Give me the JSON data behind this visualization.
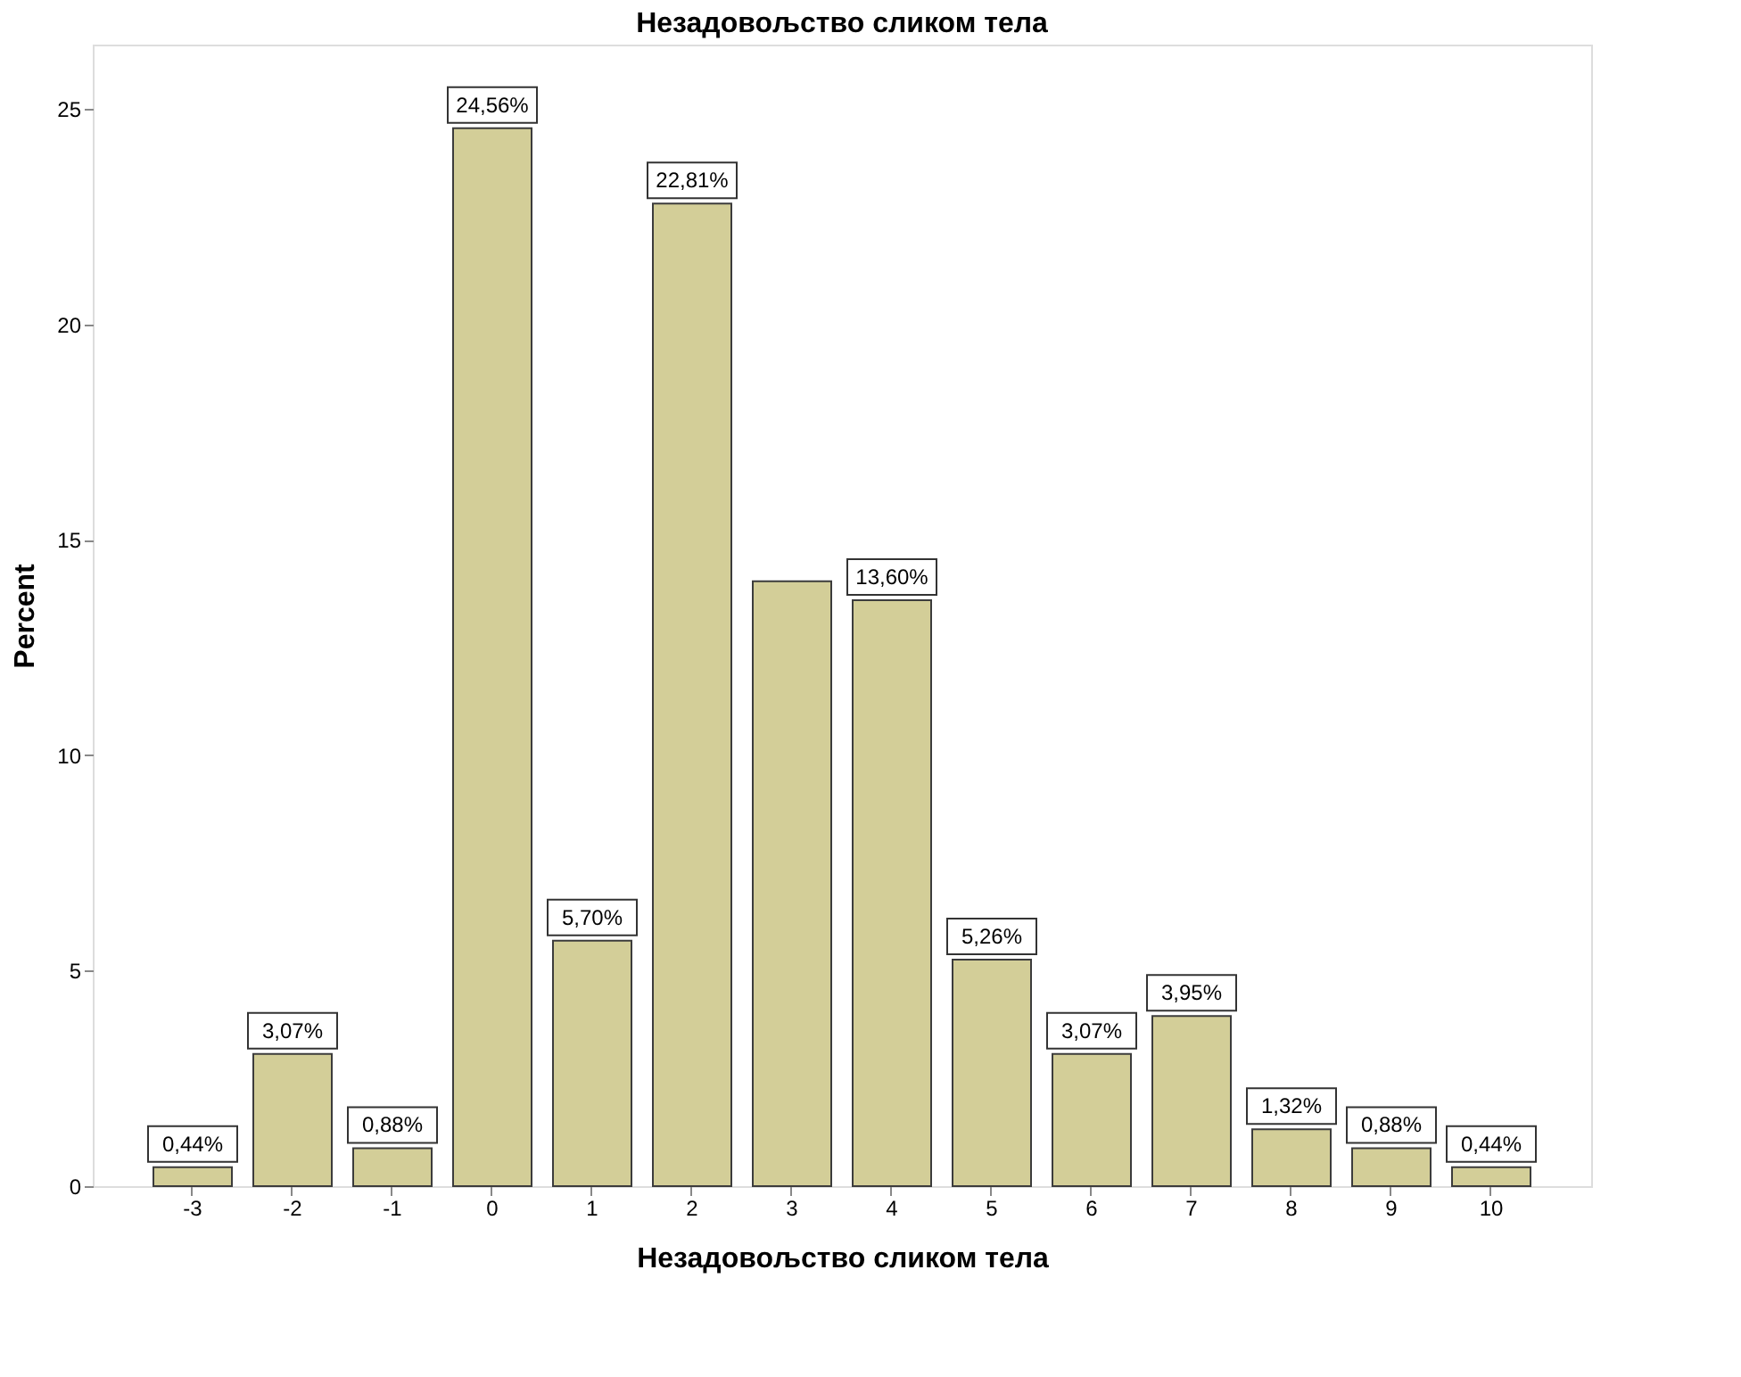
{
  "chart_data": {
    "type": "bar",
    "title": "Незадовољство сликом тела",
    "xlabel": "Незадовољство сликом тела",
    "ylabel": "Percent",
    "categories": [
      "-3",
      "-2",
      "-1",
      "0",
      "1",
      "2",
      "3",
      "4",
      "5",
      "6",
      "7",
      "8",
      "9",
      "10"
    ],
    "values": [
      0.44,
      3.07,
      0.88,
      24.56,
      5.7,
      22.81,
      14.04,
      13.6,
      5.26,
      3.07,
      3.95,
      1.32,
      0.88,
      0.44
    ],
    "value_labels": [
      "0,44%",
      "3,07%",
      "0,88%",
      "24,56%",
      "5,70%",
      "22,81%",
      null,
      "13,60%",
      "5,26%",
      "3,07%",
      "3,95%",
      "1,32%",
      "0,88%",
      "0,44%"
    ],
    "color": "#d3ce98",
    "ylim": [
      0,
      26.5
    ],
    "yticks": [
      0,
      5,
      10,
      15,
      20,
      25
    ],
    "grid": false
  }
}
